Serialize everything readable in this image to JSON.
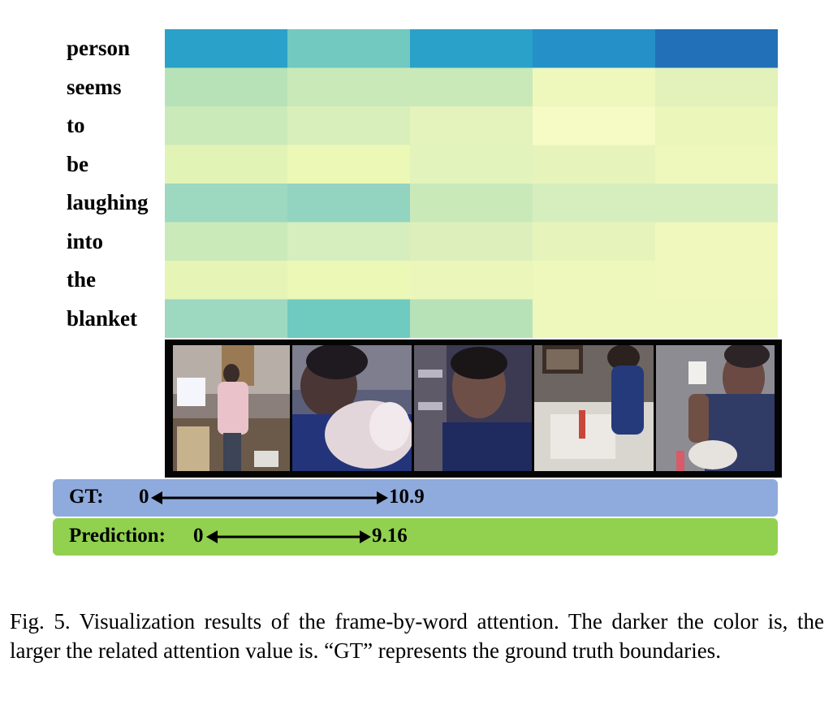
{
  "heatmap": {
    "words": [
      "person",
      "seems",
      "to",
      "be",
      "laughing",
      "into",
      "the",
      "blanket"
    ],
    "frame_count": 5,
    "colors": [
      [
        "#2aa1c8",
        "#72c9bf",
        "#2aa1c8",
        "#2590c7",
        "#2270b8"
      ],
      [
        "#b7e2b8",
        "#cae9b9",
        "#cae9b9",
        "#eef7bc",
        "#e2f2ba"
      ],
      [
        "#cbeab9",
        "#d9efbb",
        "#e3f3bb",
        "#f6fbc5",
        "#ebf6bb"
      ],
      [
        "#e2f3b6",
        "#ecf8b6",
        "#e2f3bb",
        "#e6f4bb",
        "#eef8bc"
      ],
      [
        "#9dd8c0",
        "#92d4c0",
        "#cae9b9",
        "#d6eebd",
        "#d6eebd"
      ],
      [
        "#cbeab9",
        "#d6eebd",
        "#ddf0bb",
        "#e6f4bb",
        "#f0f8bd"
      ],
      [
        "#e6f4b6",
        "#ecf8b6",
        "#ebf6bb",
        "#eef7bc",
        "#f0f8bd"
      ],
      [
        "#9dd8c0",
        "#6fcac0",
        "#b7e2b8",
        "#eef7bc",
        "#eef7bc"
      ]
    ]
  },
  "gt": {
    "label": "GT:",
    "start": "0",
    "end": "10.9",
    "start_value": 0,
    "end_value": 10.9
  },
  "prediction": {
    "label": "Prediction:",
    "start": "0",
    "end": "9.16",
    "start_value": 0,
    "end_value": 9.16
  },
  "colors": {
    "gt_bar": "#8faadc",
    "prediction_bar": "#92d050"
  },
  "caption": "Fig. 5.  Visualization results of the frame-by-word attention. The darker the color is, the larger the related attention value is. “GT” represents the ground truth boundaries."
}
